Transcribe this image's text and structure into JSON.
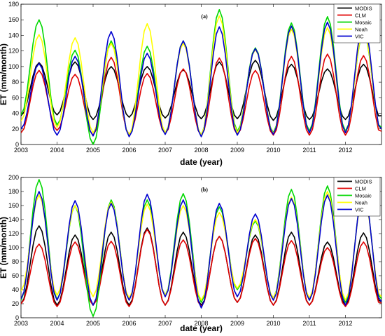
{
  "chart_data": [
    {
      "type": "line",
      "panel_label": "(a)",
      "xlabel": "date (year)",
      "ylabel": "ET (mm/month)",
      "xlim": [
        2003.0,
        2013.0
      ],
      "ylim": [
        0,
        180
      ],
      "yticks": [
        0,
        20,
        40,
        60,
        80,
        100,
        120,
        140,
        160,
        180
      ],
      "xticks": [
        "2003",
        "2004",
        "2005",
        "2006",
        "2007",
        "2008",
        "2009",
        "2010",
        "2011",
        "2012"
      ],
      "legend_position": "top-right",
      "series": [
        {
          "name": "MODIS",
          "color": "#000000",
          "peaks": [
            105,
            106,
            100,
            100,
            96,
            106,
            108,
            103,
            97,
            103
          ],
          "troughs": [
            37,
            38,
            32,
            35,
            34,
            33,
            33,
            31,
            32,
            32
          ]
        },
        {
          "name": "CLM",
          "color": "#e00000",
          "peaks": [
            95,
            90,
            112,
            91,
            97,
            111,
            95,
            113,
            116,
            114
          ],
          "troughs": [
            15,
            18,
            12,
            13,
            14,
            12,
            13,
            12,
            12,
            12
          ]
        },
        {
          "name": "Mosaic",
          "color": "#00d800",
          "peaks": [
            160,
            121,
            133,
            126,
            133,
            173,
            124,
            156,
            164,
            145
          ],
          "troughs": [
            38,
            25,
            0,
            12,
            15,
            12,
            17,
            15,
            17,
            17
          ]
        },
        {
          "name": "Noah",
          "color": "#ffff00",
          "peaks": [
            141,
            137,
            130,
            155,
            130,
            165,
            122,
            148,
            150,
            147
          ],
          "troughs": [
            30,
            22,
            15,
            12,
            15,
            12,
            15,
            14,
            15,
            15
          ]
        },
        {
          "name": "VIC",
          "color": "#0000d0",
          "peaks": [
            104,
            113,
            145,
            117,
            133,
            151,
            123,
            152,
            157,
            158
          ],
          "troughs": [
            20,
            12,
            11,
            10,
            13,
            10,
            12,
            13,
            15,
            15
          ]
        }
      ]
    },
    {
      "type": "line",
      "panel_label": "(b)",
      "xlabel": "date (year)",
      "ylabel": "ET (mm/month)",
      "xlim": [
        2003.0,
        2013.0
      ],
      "ylim": [
        0,
        200
      ],
      "yticks": [
        0,
        20,
        40,
        60,
        80,
        100,
        120,
        140,
        160,
        180,
        200
      ],
      "xticks": [
        "2003",
        "2004",
        "2005",
        "2006",
        "2007",
        "2008",
        "2009",
        "2010",
        "2011",
        "2012"
      ],
      "legend_position": "top-right",
      "series": [
        {
          "name": "MODIS",
          "color": "#000000",
          "peaks": [
            131,
            118,
            122,
            128,
            122,
            116,
            118,
            122,
            108,
            121
          ],
          "troughs": [
            20,
            18,
            18,
            18,
            18,
            18,
            22,
            18,
            18,
            18
          ]
        },
        {
          "name": "CLM",
          "color": "#e00000",
          "peaks": [
            105,
            108,
            109,
            126,
            111,
            116,
            113,
            110,
            100,
            108
          ],
          "troughs": [
            20,
            16,
            18,
            16,
            18,
            16,
            22,
            18,
            18,
            16
          ]
        },
        {
          "name": "Mosaic",
          "color": "#00d800",
          "peaks": [
            197,
            160,
            168,
            168,
            177,
            158,
            138,
            183,
            188,
            178
          ],
          "troughs": [
            25,
            26,
            2,
            27,
            32,
            22,
            40,
            28,
            25,
            22
          ]
        },
        {
          "name": "Noah",
          "color": "#ffff00",
          "peaks": [
            175,
            160,
            165,
            162,
            160,
            150,
            140,
            172,
            180,
            175
          ],
          "troughs": [
            38,
            32,
            30,
            28,
            32,
            25,
            42,
            28,
            28,
            25
          ]
        },
        {
          "name": "VIC",
          "color": "#0000d0",
          "peaks": [
            180,
            167,
            163,
            176,
            168,
            163,
            148,
            170,
            175,
            180
          ],
          "troughs": [
            27,
            25,
            18,
            25,
            30,
            14,
            30,
            25,
            25,
            18
          ]
        }
      ]
    }
  ]
}
